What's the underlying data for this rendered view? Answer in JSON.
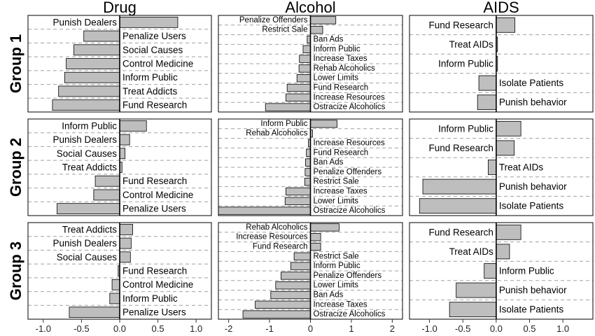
{
  "colors": {
    "bar_fill": "#bebebe",
    "bar_stroke": "#000000",
    "grid": "#a0a0a0",
    "frame": "#000000"
  },
  "chart_data": {
    "type": "bar",
    "orientation": "horizontal",
    "columns": [
      "Drug",
      "Alcohol",
      "AIDS"
    ],
    "rows": [
      "Group 1",
      "Group 2",
      "Group 3"
    ],
    "panels": [
      {
        "row": "Group 1",
        "col": "Drug",
        "xlim": [
          -1.2,
          1.2
        ],
        "categories": [
          "Punish Dealers",
          "Penalize Users",
          "Social Causes",
          "Control Medicine",
          "Inform Public",
          "Treat Addicts",
          "Fund Research"
        ],
        "values": [
          0.76,
          -0.47,
          -0.6,
          -0.7,
          -0.72,
          -0.8,
          -0.88
        ]
      },
      {
        "row": "Group 1",
        "col": "Alcohol",
        "xlim": [
          -2.25,
          2.25
        ],
        "categories": [
          "Penalize Offenders",
          "Restrict Sale",
          "Ban Ads",
          "Inform Public",
          "Increase Taxes",
          "Rehab Alcoholics",
          "Lower Limits",
          "Fund Research",
          "Increase Resources",
          "Ostracize Alcoholics"
        ],
        "values": [
          0.62,
          0.3,
          -0.08,
          -0.18,
          -0.27,
          -0.28,
          -0.33,
          -0.57,
          -0.6,
          -1.1
        ]
      },
      {
        "row": "Group 1",
        "col": "AIDS",
        "xlim": [
          -1.3,
          1.45
        ],
        "categories": [
          "Fund Research",
          "Treat AIDs",
          "Inform Public",
          "Isolate Patients",
          "Punish behavior"
        ],
        "values": [
          0.28,
          0.02,
          0.02,
          -0.26,
          -0.28
        ]
      },
      {
        "row": "Group 2",
        "col": "Drug",
        "xlim": [
          -1.2,
          1.2
        ],
        "categories": [
          "Inform Public",
          "Punish Dealers",
          "Social Causes",
          "Treat Addicts",
          "Fund Research",
          "Control Medicine",
          "Penalize Users"
        ],
        "values": [
          0.35,
          0.13,
          0.07,
          0.03,
          -0.32,
          -0.34,
          -0.82
        ]
      },
      {
        "row": "Group 2",
        "col": "Alcohol",
        "xlim": [
          -2.25,
          2.25
        ],
        "categories": [
          "Inform Public",
          "Rehab Alcoholics",
          "Increase Resources",
          "Fund Research",
          "Ban Ads",
          "Penalize Offenders",
          "Restrict Sale",
          "Increase Taxes",
          "Lower Limits",
          "Ostracize Alcoholics"
        ],
        "values": [
          0.65,
          0.05,
          -0.05,
          -0.1,
          -0.12,
          -0.13,
          -0.14,
          -0.6,
          -0.62,
          -2.25
        ]
      },
      {
        "row": "Group 2",
        "col": "AIDS",
        "xlim": [
          -1.3,
          1.45
        ],
        "categories": [
          "Inform Public",
          "Fund Research",
          "Treat AIDs",
          "Punish behavior",
          "Isolate Patients"
        ],
        "values": [
          0.37,
          0.27,
          -0.12,
          -1.1,
          -1.15
        ]
      },
      {
        "row": "Group 3",
        "col": "Drug",
        "xlim": [
          -1.2,
          1.2
        ],
        "categories": [
          "Treat Addicts",
          "Punish Dealers",
          "Social Causes",
          "Fund Research",
          "Control Medicine",
          "Inform Public",
          "Penalize Users"
        ],
        "values": [
          0.17,
          0.15,
          0.14,
          -0.02,
          -0.1,
          -0.13,
          -0.66
        ]
      },
      {
        "row": "Group 3",
        "col": "Alcohol",
        "xlim": [
          -2.25,
          2.25
        ],
        "categories": [
          "Rehab Alcoholics",
          "Increase Resources",
          "Fund Research",
          "Restrict Sale",
          "Inform Public",
          "Penalize Offenders",
          "Lower Limits",
          "Ban Ads",
          "Increase Taxes",
          "Ostracize Alcoholics"
        ],
        "values": [
          0.7,
          0.25,
          0.25,
          -0.4,
          -0.48,
          -0.72,
          -0.85,
          -0.97,
          -1.35,
          -1.65
        ]
      },
      {
        "row": "Group 3",
        "col": "AIDS",
        "xlim": [
          -1.3,
          1.45
        ],
        "categories": [
          "Fund Research",
          "Treat AIDs",
          "Inform Public",
          "Punish behavior",
          "Isolate Patients"
        ],
        "values": [
          0.37,
          0.2,
          -0.18,
          -0.6,
          -0.7
        ]
      }
    ],
    "x_axis_ticks": [
      {
        "col": "Drug",
        "ticks": [
          -1.0,
          -0.5,
          0.0,
          0.5,
          1.0
        ],
        "labels": [
          "-1.0",
          "-0.5",
          "0.0",
          "0.5",
          "1.0"
        ]
      },
      {
        "col": "Alcohol",
        "ticks": [
          -2,
          -1,
          0,
          1,
          2
        ],
        "labels": [
          "-2",
          "-1",
          "0",
          "1",
          "2"
        ]
      },
      {
        "col": "AIDS",
        "ticks": [
          -1.0,
          -0.5,
          0.0,
          0.5,
          1.0
        ],
        "labels": [
          "-1.0",
          "-0.5",
          "0.0",
          "0.5",
          "1.0"
        ]
      }
    ],
    "grid": "horizontal dashed lines between categories",
    "legend": "none"
  }
}
